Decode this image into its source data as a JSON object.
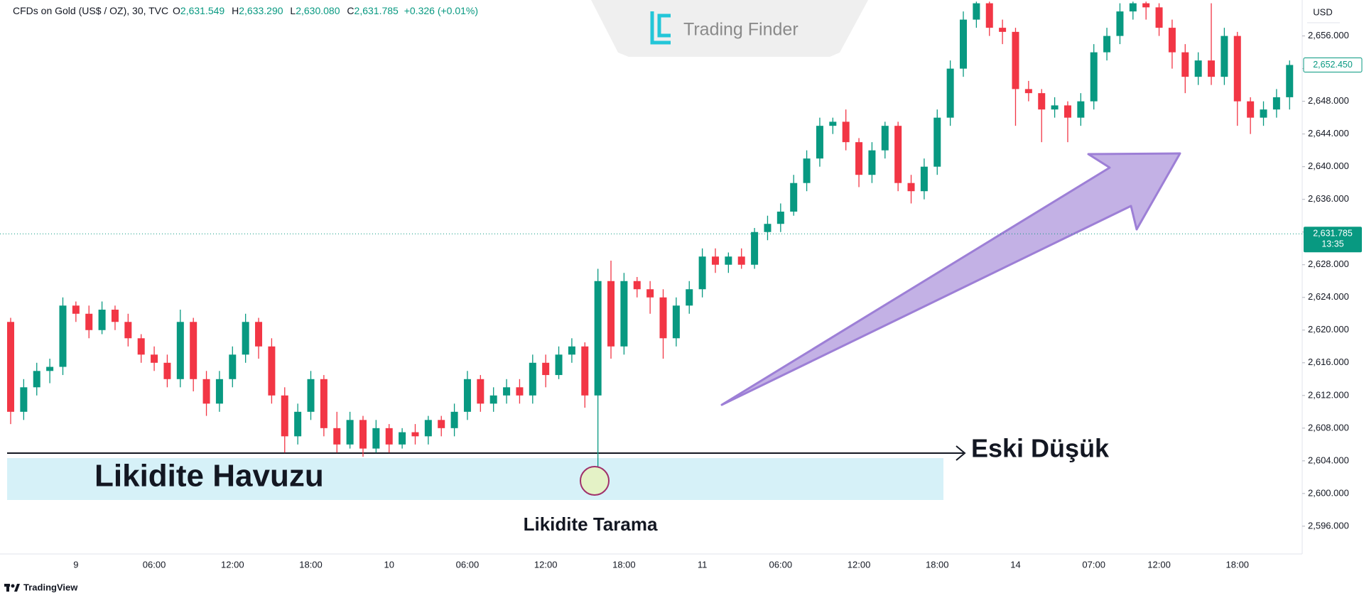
{
  "chart_data": {
    "type": "candlestick",
    "header": {
      "symbol": "CFDs on Gold (US$ / OZ), 30, TVC",
      "o_label": "O",
      "open": "2,631.549",
      "h_label": "H",
      "high": "2,633.290",
      "l_label": "L",
      "low": "2,630.080",
      "c_label": "C",
      "close": "2,631.785",
      "change": "+0.326 (+0.01%)"
    },
    "watermark": "Trading Finder",
    "currency": "USD",
    "footer": "TradingView",
    "annotations": {
      "pool": "Likidite Havuzu",
      "sweep": "Likidite Tarama",
      "old_low": "Eski Düşük"
    },
    "colors": {
      "up": "#089981",
      "down": "#f23645"
    },
    "categories": [
      null,
      null,
      null,
      null,
      null,
      "9",
      null,
      null,
      null,
      null,
      null,
      "06:00",
      null,
      null,
      null,
      null,
      null,
      "12:00",
      null,
      null,
      null,
      null,
      null,
      "18:00",
      null,
      null,
      null,
      null,
      null,
      "10",
      null,
      null,
      null,
      null,
      null,
      "06:00",
      null,
      null,
      null,
      null,
      null,
      "12:00",
      null,
      null,
      null,
      null,
      null,
      "18:00",
      null,
      null,
      null,
      null,
      null,
      "11",
      null,
      null,
      null,
      null,
      null,
      "06:00",
      null,
      null,
      null,
      null,
      null,
      "12:00",
      null,
      null,
      null,
      null,
      null,
      "18:00",
      null,
      null,
      null,
      null,
      null,
      "14",
      null,
      null,
      null,
      null,
      null,
      "07:00",
      null,
      null,
      null,
      null,
      "12:00",
      null,
      null,
      null,
      null,
      null,
      "18:00",
      null,
      null,
      null,
      null
    ],
    "open": [
      2621,
      2610,
      2613,
      2615,
      2615.5,
      2623,
      2622,
      2620,
      2622.5,
      2621,
      2619,
      2617,
      2616,
      2614,
      2621,
      2614,
      2611,
      2614,
      2617,
      2621,
      2618,
      2612,
      2607,
      2610,
      2614,
      2608,
      2606,
      2609,
      2605.5,
      2608,
      2606,
      2607.5,
      2607,
      2609,
      2608,
      2610,
      2614,
      2611,
      2612,
      2613,
      2612,
      2616,
      2614.5,
      2617,
      2618,
      2612,
      2626,
      2618,
      2626,
      2625,
      2624,
      2619,
      2623,
      2625,
      2629,
      2628,
      2629,
      2628,
      2632,
      2633,
      2634.5,
      2638,
      2641,
      2645,
      2645.5,
      2643,
      2639,
      2642,
      2645,
      2638,
      2637,
      2640,
      2646,
      2652,
      2658,
      2660,
      2657,
      2656.5,
      2649.5,
      2649,
      2647,
      2647.5,
      2646,
      2648,
      2654,
      2656,
      2659,
      2660,
      2659.5,
      2657,
      2654,
      2651,
      2653,
      2651,
      2656,
      2648,
      2646,
      2647,
      2648.5
    ],
    "high": [
      2621.5,
      2614,
      2616,
      2616.5,
      2624,
      2623.5,
      2623,
      2623.5,
      2623,
      2622,
      2619.5,
      2618,
      2617,
      2622.5,
      2621.5,
      2615,
      2615,
      2618,
      2622,
      2621.5,
      2619,
      2613,
      2611,
      2615,
      2614.5,
      2610,
      2610,
      2609.5,
      2609,
      2608.5,
      2608,
      2608.5,
      2609.5,
      2609.5,
      2611,
      2615,
      2614.5,
      2613,
      2614,
      2614,
      2617,
      2617,
      2618,
      2619,
      2618.5,
      2627.5,
      2628.5,
      2627,
      2626.5,
      2626,
      2625,
      2624,
      2626,
      2630,
      2630,
      2629.5,
      2630,
      2632.5,
      2634,
      2635.5,
      2639,
      2642,
      2646,
      2646,
      2647,
      2643.5,
      2643,
      2645.5,
      2645.5,
      2639,
      2641,
      2647,
      2653,
      2659,
      2660.2,
      2660.2,
      2658,
      2657,
      2650.5,
      2649.5,
      2648.5,
      2648,
      2649,
      2655,
      2657,
      2660,
      2660.2,
      2660.2,
      2660,
      2658,
      2655,
      2654,
      2660,
      2657,
      2656.5,
      2648.5,
      2648,
      2649.5,
      2653
    ],
    "low": [
      2608.5,
      2609,
      2612,
      2613.5,
      2614.5,
      2621,
      2619,
      2619.5,
      2620,
      2618,
      2616,
      2615,
      2613,
      2613,
      2612.5,
      2609.5,
      2610,
      2613,
      2616,
      2616.5,
      2611,
      2605,
      2606,
      2609,
      2607,
      2605,
      2605.5,
      2604.5,
      2605,
      2605,
      2605.5,
      2606,
      2606,
      2607,
      2607,
      2609,
      2610,
      2610,
      2611,
      2611,
      2611,
      2613,
      2614,
      2616,
      2610.5,
      2602.5,
      2616.5,
      2617,
      2624,
      2622,
      2616.5,
      2618,
      2622,
      2624,
      2627,
      2627,
      2627.5,
      2627.5,
      2631,
      2632,
      2634,
      2637,
      2640,
      2644,
      2642,
      2637.5,
      2638,
      2641,
      2637,
      2635.5,
      2636,
      2639,
      2645,
      2651,
      2657,
      2656,
      2655,
      2645,
      2648,
      2643,
      2646,
      2643,
      2645,
      2647,
      2653,
      2655,
      2658,
      2658,
      2656,
      2652,
      2649,
      2650,
      2650,
      2650,
      2645,
      2644,
      2645,
      2646,
      2647
    ],
    "close": [
      2610,
      2613,
      2615,
      2615.5,
      2623,
      2622,
      2620,
      2622.5,
      2621,
      2619,
      2617,
      2616,
      2614,
      2621,
      2614,
      2611,
      2614,
      2617,
      2621,
      2618,
      2612,
      2607,
      2610,
      2614,
      2608,
      2606,
      2609,
      2605.5,
      2608,
      2606,
      2607.5,
      2607,
      2609,
      2608,
      2610,
      2614,
      2611,
      2612,
      2613,
      2612,
      2616,
      2614.5,
      2617,
      2618,
      2612,
      2626,
      2618,
      2626,
      2625,
      2624,
      2619,
      2623,
      2625,
      2629,
      2628,
      2629,
      2628,
      2632,
      2633,
      2634.5,
      2638,
      2641,
      2645,
      2645.5,
      2643,
      2639,
      2642,
      2645,
      2638,
      2637,
      2640,
      2646,
      2652,
      2658,
      2660,
      2657,
      2656.5,
      2649.5,
      2649,
      2647,
      2647.5,
      2646,
      2648,
      2654,
      2656,
      2659,
      2660,
      2659.5,
      2657,
      2654,
      2651,
      2653,
      2651,
      2656,
      2648,
      2646,
      2647,
      2648.5,
      2652.45
    ],
    "ylim": [
      2592.6,
      2660.4
    ],
    "yticks": [
      {
        "value": 2596,
        "label": "2,596.000"
      },
      {
        "value": 2600,
        "label": "2,600.000"
      },
      {
        "value": 2604,
        "label": "2,604.000"
      },
      {
        "value": 2608,
        "label": "2,608.000"
      },
      {
        "value": 2612,
        "label": "2,612.000"
      },
      {
        "value": 2616,
        "label": "2,616.000"
      },
      {
        "value": 2620,
        "label": "2,620.000"
      },
      {
        "value": 2624,
        "label": "2,624.000"
      },
      {
        "value": 2628,
        "label": "2,628.000"
      },
      {
        "value": 2632,
        "label": "2,632.000"
      },
      {
        "value": 2636,
        "label": "2,636.000"
      },
      {
        "value": 2640,
        "label": "2,640.000"
      },
      {
        "value": 2644,
        "label": "2,644.000"
      },
      {
        "value": 2648,
        "label": "2,648.000"
      },
      {
        "value": 2652,
        "label": "2,652.000"
      },
      {
        "value": 2656,
        "label": "2,656.000"
      }
    ],
    "last_price": {
      "value": 2631.785,
      "label": "2,631.785"
    },
    "countdown": "13:35",
    "marked_price": {
      "value": 2652.45,
      "label": "2,652.450"
    }
  }
}
